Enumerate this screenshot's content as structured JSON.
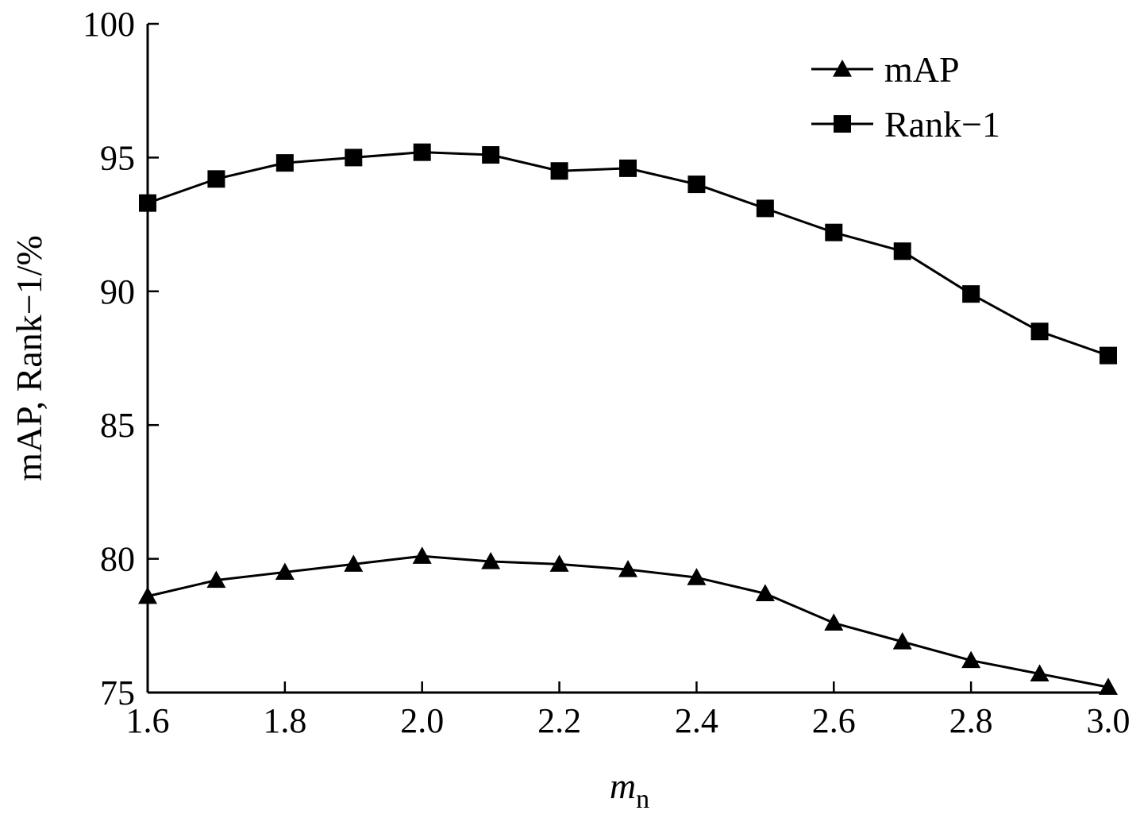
{
  "chart_data": {
    "type": "line",
    "xlabel": {
      "main": "m",
      "sub": "n"
    },
    "ylabel": "mAP, Rank−1/%",
    "xlim": [
      1.6,
      3.0
    ],
    "ylim": [
      75,
      100
    ],
    "x_ticks": [
      "1.6",
      "1.8",
      "2.0",
      "2.2",
      "2.4",
      "2.6",
      "2.8",
      "3.0"
    ],
    "y_ticks": [
      "75",
      "80",
      "85",
      "90",
      "95",
      "100"
    ],
    "x": [
      1.6,
      1.7,
      1.8,
      1.9,
      2.0,
      2.1,
      2.2,
      2.3,
      2.4,
      2.5,
      2.6,
      2.7,
      2.8,
      2.9,
      3.0
    ],
    "series": [
      {
        "name": "mAP",
        "marker": "triangle",
        "values": [
          78.6,
          79.2,
          79.5,
          79.8,
          80.1,
          79.9,
          79.8,
          79.6,
          79.3,
          78.7,
          77.6,
          76.9,
          76.2,
          75.7,
          75.2
        ]
      },
      {
        "name": "Rank−1",
        "marker": "square",
        "values": [
          93.3,
          94.2,
          94.8,
          95.0,
          95.2,
          95.1,
          94.5,
          94.6,
          94.0,
          93.1,
          92.2,
          91.5,
          89.9,
          88.5,
          87.6
        ]
      }
    ],
    "grid": false,
    "legend_position": "top-right",
    "line_color": "#000000"
  }
}
